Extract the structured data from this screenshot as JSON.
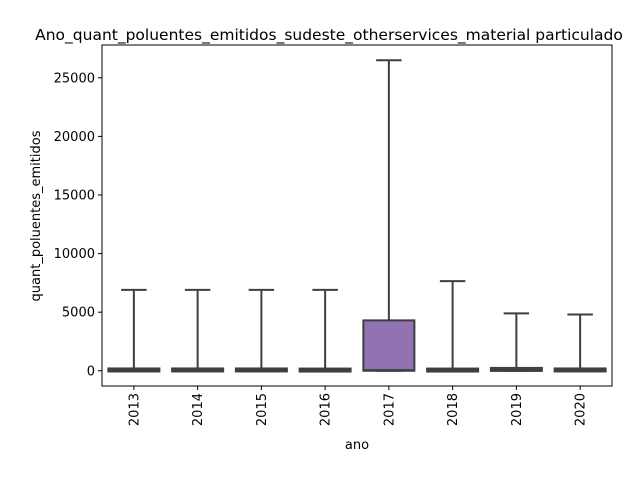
{
  "chart_data": {
    "type": "boxplot",
    "title": "Ano_quant_poluentes_emitidos_sudeste_otherservices_material particulado",
    "xlabel": "ano",
    "ylabel": "quant_poluentes_emitidos",
    "categories": [
      "2013",
      "2014",
      "2015",
      "2016",
      "2017",
      "2018",
      "2019",
      "2020"
    ],
    "ylim": [
      -1300,
      27800
    ],
    "yticks": [
      0,
      5000,
      10000,
      15000,
      20000,
      25000
    ],
    "boxes": [
      {
        "category": "2013",
        "whisker_low": 0,
        "q1": 0,
        "median": 60,
        "q3": 140,
        "whisker_high": 6900,
        "color": "#3274a1"
      },
      {
        "category": "2014",
        "whisker_low": 0,
        "q1": 0,
        "median": 60,
        "q3": 140,
        "whisker_high": 6900,
        "color": "#e1812c"
      },
      {
        "category": "2015",
        "whisker_low": 0,
        "q1": 0,
        "median": 60,
        "q3": 140,
        "whisker_high": 6900,
        "color": "#3a923a"
      },
      {
        "category": "2016",
        "whisker_low": 0,
        "q1": 0,
        "median": 50,
        "q3": 120,
        "whisker_high": 6900,
        "color": "#c03d3e"
      },
      {
        "category": "2017",
        "whisker_low": 0,
        "q1": 0,
        "median": 60,
        "q3": 4300,
        "whisker_high": 26500,
        "color": "#9372b2"
      },
      {
        "category": "2018",
        "whisker_low": 0,
        "q1": 0,
        "median": 50,
        "q3": 120,
        "whisker_high": 7650,
        "color": "#845b53"
      },
      {
        "category": "2019",
        "whisker_low": 0,
        "q1": 0,
        "median": 80,
        "q3": 230,
        "whisker_high": 4900,
        "color": "#d684bd"
      },
      {
        "category": "2020",
        "whisker_low": 0,
        "q1": 0,
        "median": 60,
        "q3": 140,
        "whisker_high": 4800,
        "color": "#7f7f7f"
      }
    ],
    "grid": false,
    "legend": "none"
  }
}
